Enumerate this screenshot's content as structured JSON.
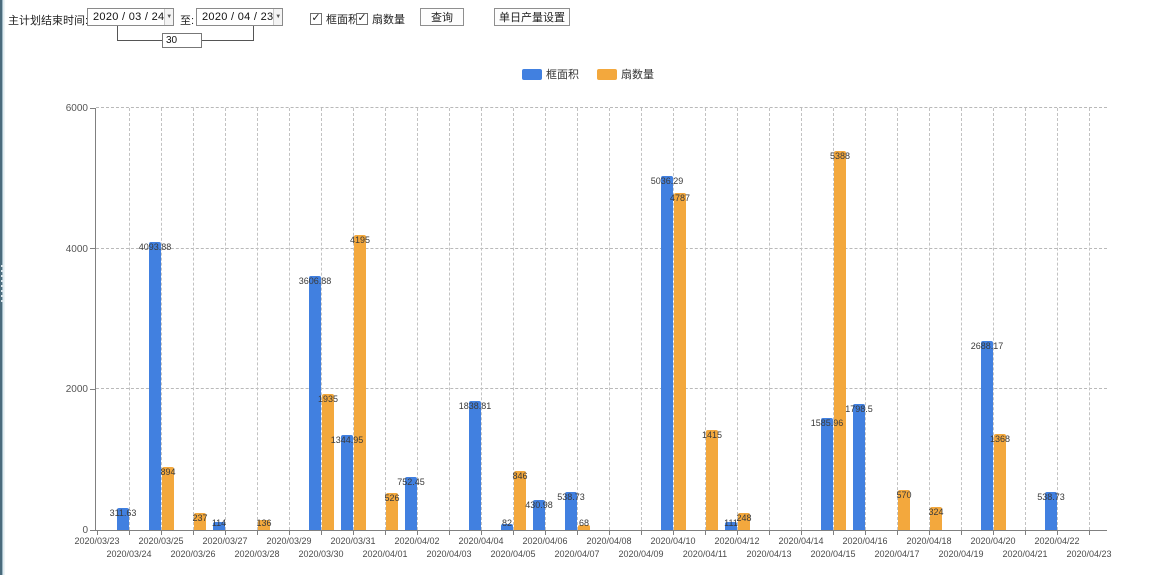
{
  "toolbar": {
    "label_main": "主计划结束时间:",
    "date_from": "2020 / 03 / 24",
    "to_label": "至:",
    "date_to": "2020 / 04 / 23",
    "interval_days": "30",
    "checkbox_area": {
      "label": "框面积",
      "checked": true
    },
    "checkbox_fans": {
      "label": "扇数量",
      "checked": true
    },
    "query_button": "查询",
    "daily_output_button": "单日产量设置"
  },
  "chart_data": {
    "type": "bar",
    "title": "",
    "xlabel": "",
    "ylabel": "",
    "ylim": [
      0,
      6000
    ],
    "yticks": [
      0,
      2000,
      4000,
      6000
    ],
    "grid": true,
    "legend_position": "top",
    "categories": [
      "2020/03/23",
      "2020/03/24",
      "2020/03/25",
      "2020/03/26",
      "2020/03/27",
      "2020/03/28",
      "2020/03/29",
      "2020/03/30",
      "2020/03/31",
      "2020/04/01",
      "2020/04/02",
      "2020/04/03",
      "2020/04/04",
      "2020/04/05",
      "2020/04/06",
      "2020/04/07",
      "2020/04/08",
      "2020/04/09",
      "2020/04/10",
      "2020/04/11",
      "2020/04/12",
      "2020/04/13",
      "2020/04/14",
      "2020/04/15",
      "2020/04/16",
      "2020/04/17",
      "2020/04/18",
      "2020/04/19",
      "2020/04/20",
      "2020/04/21",
      "2020/04/22",
      "2020/04/23"
    ],
    "series": [
      {
        "name": "框面积",
        "color": "#4180e0",
        "values": [
          null,
          311.63,
          4093.88,
          null,
          114,
          null,
          null,
          3606.88,
          1344.95,
          null,
          752.45,
          null,
          1838.81,
          82,
          430.98,
          538.73,
          null,
          null,
          5036.29,
          null,
          111,
          null,
          null,
          1585.96,
          1798.5,
          null,
          null,
          null,
          2688.17,
          null,
          538.73,
          null
        ]
      },
      {
        "name": "扇数量",
        "color": "#f3a83d",
        "values": [
          null,
          null,
          894,
          237,
          null,
          136,
          null,
          1935,
          4195,
          526,
          null,
          null,
          null,
          846,
          null,
          68,
          null,
          null,
          4787,
          1415,
          248,
          null,
          null,
          5388,
          null,
          570,
          324,
          null,
          1368,
          null,
          null,
          null
        ]
      }
    ]
  }
}
